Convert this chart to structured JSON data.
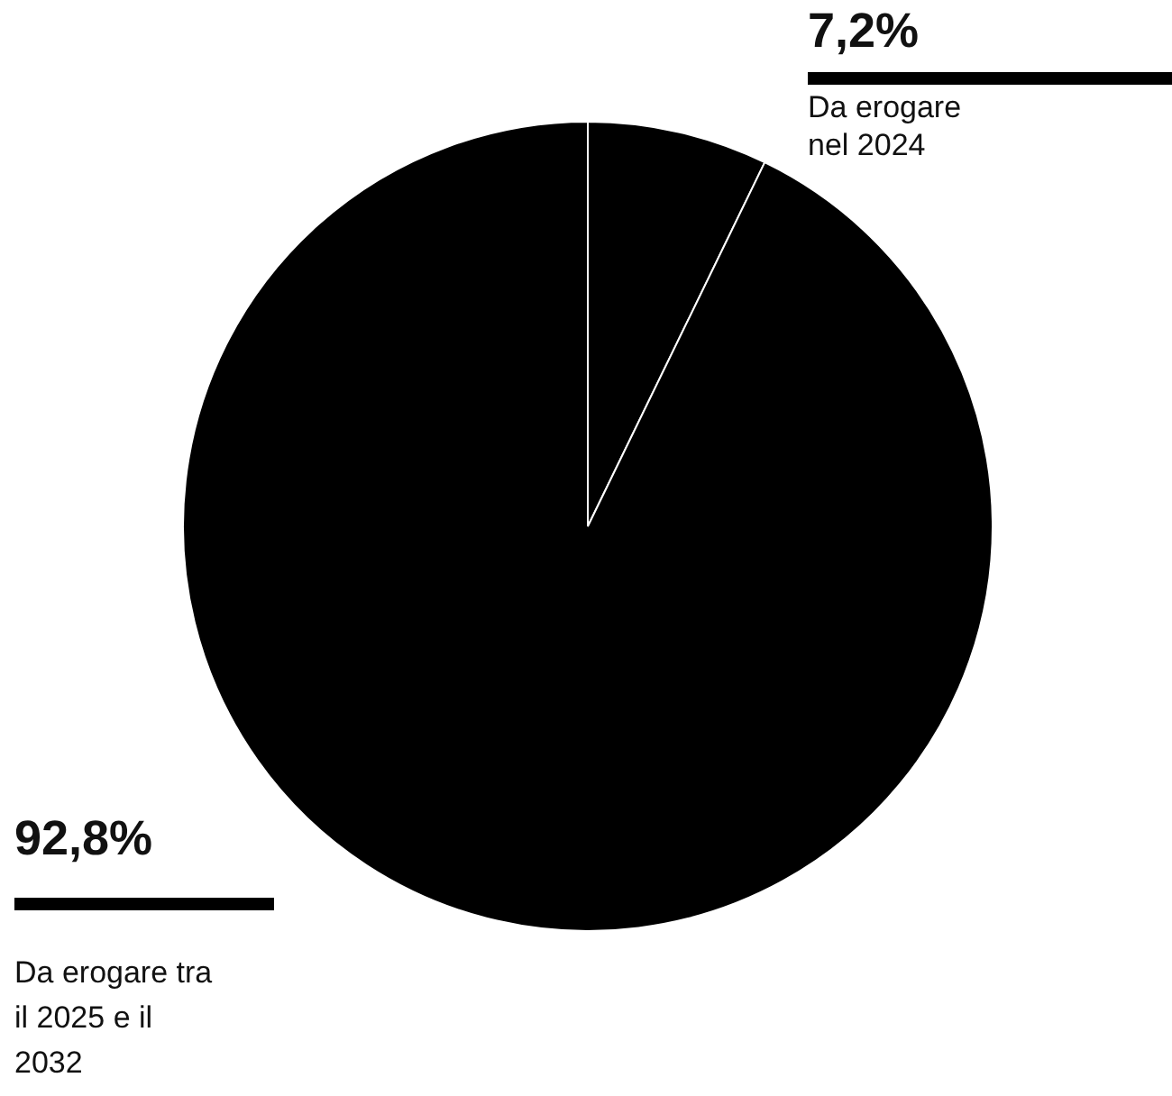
{
  "chart_data": {
    "type": "pie",
    "categories": [
      "Da erogare nel 2024",
      "Da erogare tra il 2025 e il 2032"
    ],
    "values": [
      7.2,
      92.8
    ],
    "colors": [
      "#000000",
      "#000000"
    ],
    "value_labels": [
      "7,2%",
      "92,8%"
    ],
    "legend": false
  }
}
